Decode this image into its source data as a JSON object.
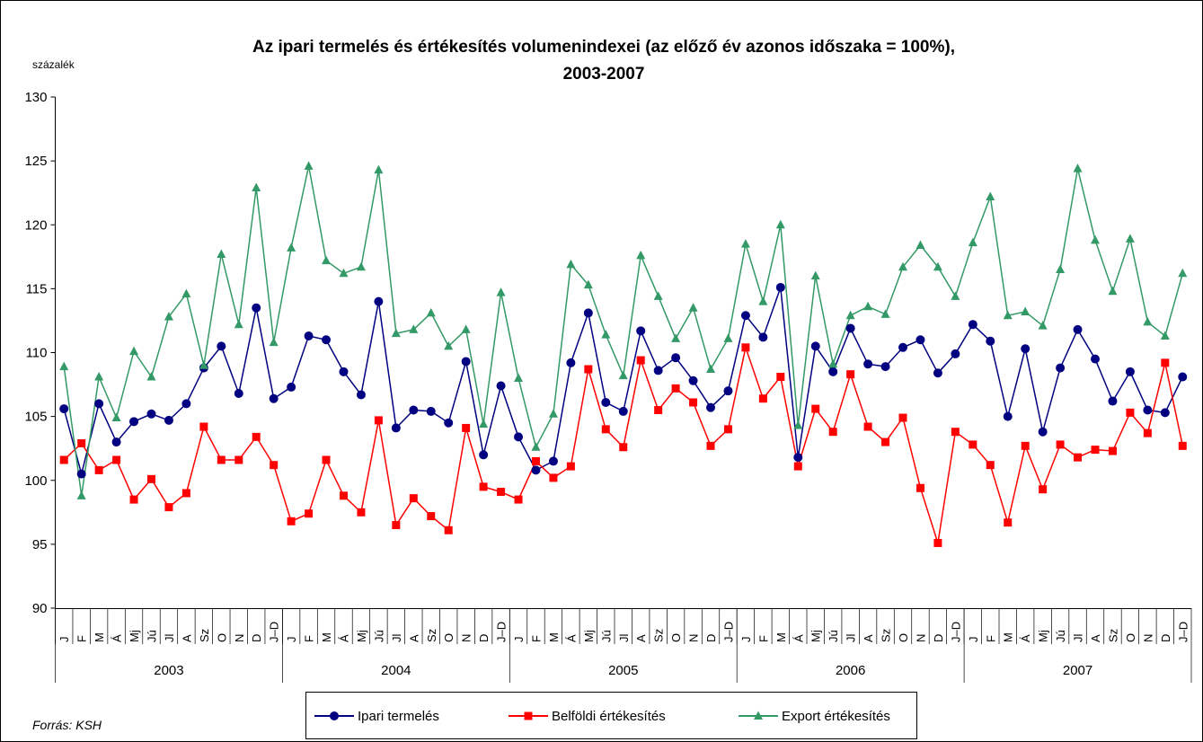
{
  "chart_data": {
    "type": "line",
    "title": [
      "Az ipari termelés és értékesítés volumenindexei (az előző év azonos időszaka = 100%),",
      "2003-2007"
    ],
    "ylabel": "százalék",
    "source": "Forrás: KSH",
    "categories": [
      "J",
      "F",
      "M",
      "Á",
      "Mj",
      "Jú",
      "Jl",
      "A",
      "Sz",
      "O",
      "N",
      "D",
      "J–D",
      "J",
      "F",
      "M",
      "Á",
      "Mj",
      "Jú",
      "Jl",
      "A",
      "Sz",
      "O",
      "N",
      "D",
      "J–D",
      "J",
      "F",
      "M",
      "Á",
      "Mj",
      "Jú",
      "Jl",
      "A",
      "Sz",
      "O",
      "N",
      "D",
      "J–D",
      "J",
      "F",
      "M",
      "Á",
      "Mj",
      "Jú",
      "Jl",
      "A",
      "Sz",
      "O",
      "N",
      "D",
      "J–D",
      "J",
      "F",
      "M",
      "Á",
      "Mj",
      "Jú",
      "Jl",
      "A",
      "Sz",
      "O",
      "N",
      "D",
      "J–D"
    ],
    "groups": [
      "2003",
      "2004",
      "2005",
      "2006",
      "2007"
    ],
    "ylim": [
      90,
      130
    ],
    "yticks": [
      90,
      95,
      100,
      105,
      110,
      115,
      120,
      125,
      130
    ],
    "series": [
      {
        "name": "Ipari termelés",
        "color": "#000080",
        "marker": "circle",
        "values": [
          105.6,
          100.5,
          106.0,
          103.0,
          104.6,
          105.2,
          104.7,
          106.0,
          108.8,
          110.5,
          106.8,
          113.5,
          106.4,
          107.3,
          111.3,
          111.0,
          108.5,
          106.7,
          114.0,
          104.1,
          105.5,
          105.4,
          104.5,
          109.3,
          102.0,
          107.4,
          103.4,
          100.8,
          101.5,
          109.2,
          113.1,
          106.1,
          105.4,
          111.7,
          108.6,
          109.6,
          107.8,
          105.7,
          107.0,
          112.9,
          111.2,
          115.1,
          101.8,
          110.5,
          108.5,
          111.9,
          109.1,
          108.9,
          110.4,
          111.0,
          108.4,
          109.9,
          112.2,
          110.9,
          105.0,
          110.3,
          103.8,
          108.8,
          111.8,
          109.5,
          106.2,
          108.5,
          105.5,
          105.3,
          108.1
        ]
      },
      {
        "name": "Belföldi értékesítés",
        "color": "#ff0000",
        "marker": "square",
        "values": [
          101.6,
          102.9,
          100.8,
          101.6,
          98.5,
          100.1,
          97.9,
          99.0,
          104.2,
          101.6,
          101.6,
          103.4,
          101.2,
          96.8,
          97.4,
          101.6,
          98.8,
          97.5,
          104.7,
          96.5,
          98.6,
          97.2,
          96.1,
          104.1,
          99.5,
          99.1,
          98.5,
          101.5,
          100.2,
          101.1,
          108.7,
          104.0,
          102.6,
          109.4,
          105.5,
          107.2,
          106.1,
          102.7,
          104.0,
          110.4,
          106.4,
          108.1,
          101.1,
          105.6,
          103.8,
          108.3,
          104.2,
          103.0,
          104.9,
          99.4,
          95.1,
          103.8,
          102.8,
          101.2,
          96.7,
          102.7,
          99.3,
          102.8,
          101.8,
          102.4,
          102.3,
          105.3,
          103.7,
          109.2,
          102.7
        ]
      },
      {
        "name": "Export értékesítés",
        "color": "#339966",
        "marker": "triangle",
        "values": [
          108.9,
          98.8,
          108.1,
          104.9,
          110.1,
          108.1,
          112.8,
          114.6,
          109.0,
          117.7,
          112.2,
          122.9,
          110.8,
          118.2,
          124.6,
          117.2,
          116.2,
          116.7,
          124.3,
          111.5,
          111.8,
          113.1,
          110.5,
          111.8,
          104.4,
          114.7,
          108.0,
          102.6,
          105.2,
          116.9,
          115.3,
          111.4,
          108.2,
          117.6,
          114.4,
          111.1,
          113.5,
          108.7,
          111.1,
          118.5,
          114.0,
          120.0,
          104.3,
          116.0,
          109.1,
          112.9,
          113.6,
          113.0,
          116.7,
          118.4,
          116.7,
          114.4,
          118.6,
          122.2,
          112.9,
          113.2,
          112.1,
          116.5,
          124.4,
          118.8,
          114.8,
          118.9,
          112.4,
          111.3,
          116.2
        ]
      }
    ]
  }
}
